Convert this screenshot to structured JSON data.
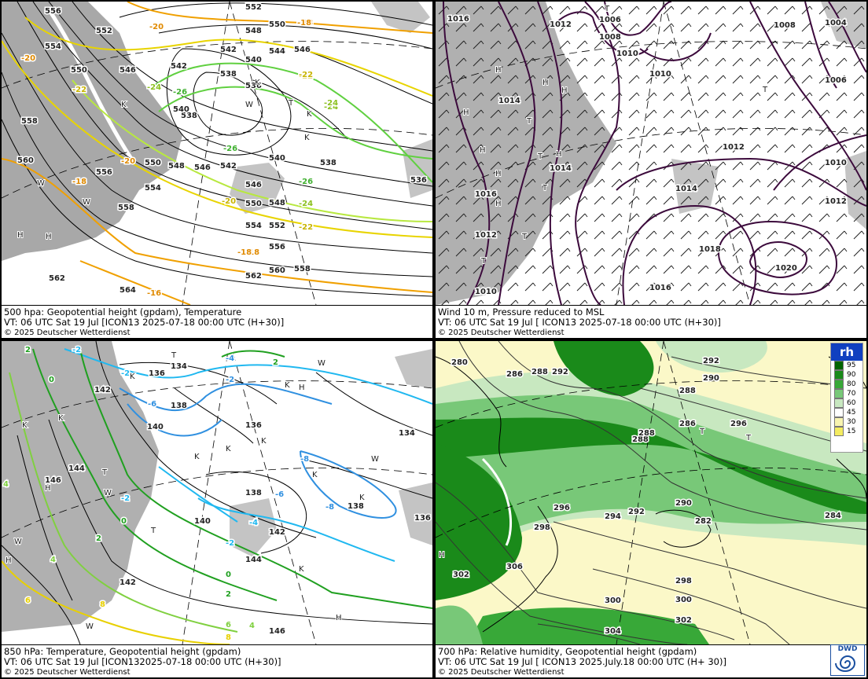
{
  "panels": [
    {
      "caption_line1": "500 hpa: Geopotential height (gpdam), Temperature",
      "caption_line2": "VT: 06 UTC Sat  19 Jul [ICON13 2025-07-18 00:00 UTC  (H+30)]",
      "copyright": "© 2025 Deutscher Wetterdienst",
      "height_labels": [
        "556",
        "552",
        "554",
        "550",
        "546",
        "542",
        "548",
        "552",
        "550",
        "546",
        "540",
        "544",
        "542",
        "538",
        "538",
        "540",
        "536",
        "536",
        "558",
        "560",
        "556",
        "550",
        "554",
        "548",
        "546",
        "542",
        "540",
        "538",
        "546",
        "548",
        "550",
        "552",
        "554",
        "558",
        "556",
        "560",
        "562",
        "564",
        "562",
        "558"
      ],
      "temp_labels": [
        "-20",
        "-18",
        "-20",
        "-22",
        "-24",
        "-26",
        "-24",
        "-22",
        "-18",
        "-26",
        "-24",
        "-26",
        "-20",
        "-18",
        "-20",
        "-22",
        "-18",
        "-16",
        "-24",
        "-22",
        "-18"
      ],
      "pressure_marks": [
        "K",
        "W",
        "T",
        "K",
        "K",
        "H",
        "H",
        "K",
        "W",
        "W"
      ],
      "colors": {
        "height": "#000000",
        "t_orange": "#f0a000",
        "t_yellow": "#e8d400",
        "t_light": "#b8e840",
        "t_green": "#60d040",
        "land": "#a8a8a8"
      }
    },
    {
      "caption_line1": "Wind 10 m, Pressure reduced to MSL",
      "caption_line2": "VT: 06 UTC Sat  19 Jul [ ICON13 2025-07-18 00:00 UTC (H+30)]",
      "copyright": "© 2025 Deutscher Wetterdienst",
      "pressure_labels": [
        "1016",
        "1006",
        "1012",
        "1008",
        "1010",
        "1008",
        "1004",
        "1010",
        "1014",
        "1006",
        "1012",
        "1010",
        "1014",
        "1014",
        "1016",
        "1012",
        "1018",
        "1020",
        "1016",
        "1010",
        "1012"
      ],
      "pressure_marks": [
        "T",
        "H",
        "H",
        "H",
        "H",
        "H",
        "T",
        "T",
        "H",
        "H",
        "T",
        "H",
        "T",
        "T",
        "T"
      ],
      "colors": {
        "isobar": "#3c0a3c",
        "land": "#b0b0b0"
      }
    },
    {
      "caption_line1": "850 hPa:  Temperature, Geopotential height (gpdam)",
      "caption_line2": "VT: 06 UTC Sat  19 Jul [ICON132025-07-18 00:00 UTC (H+30)]",
      "copyright": "© 2025 Deutscher Wetterdienst",
      "height_labels": [
        "134",
        "136",
        "138",
        "140",
        "142",
        "144",
        "146",
        "138",
        "136",
        "134",
        "140",
        "142",
        "144",
        "146",
        "142",
        "136",
        "138"
      ],
      "temp_labels": [
        "2",
        "-2",
        "0",
        "2",
        "-4",
        "-6",
        "-8",
        "-2",
        "0",
        "2",
        "4",
        "6",
        "8",
        "-2",
        "-4",
        "-6",
        "-8",
        "-2",
        "0",
        "2",
        "4",
        "6",
        "8",
        "4",
        "-2",
        "-4"
      ],
      "pressure_marks": [
        "T",
        "K",
        "K",
        "H",
        "K",
        "K",
        "H",
        "K",
        "W",
        "T",
        "W",
        "H",
        "W",
        "K",
        "K",
        "T",
        "K",
        "K",
        "W",
        "K",
        "H",
        "W"
      ],
      "colors": {
        "height": "#000000",
        "t_cyan": "#20b8f0",
        "t_blue": "#3090e0",
        "t_green": "#20a020",
        "t_lgreen": "#80d040",
        "t_yellow": "#e8d000",
        "land": "#b0b0b0"
      }
    },
    {
      "caption_line1": "700 hPa:  Relative humidity, Geopotential height (gpdam)",
      "caption_line2": "VT: 06 UTC Sat  19 Jul [ ICON13  2025.July.18 00:00 UTC (H+ 30)]",
      "copyright": "© 2025 Deutscher Wetterdienst",
      "height_labels": [
        "280",
        "286",
        "288",
        "292",
        "292",
        "290",
        "288",
        "286",
        "288",
        "290",
        "292",
        "294",
        "296",
        "298",
        "300",
        "302",
        "304",
        "302",
        "296",
        "298",
        "300",
        "306",
        "288",
        "284",
        "282"
      ],
      "pressure_marks": [
        "T",
        "T",
        "H"
      ],
      "legend": {
        "title": "rh",
        "entries": [
          {
            "label": "95",
            "color": "#006400"
          },
          {
            "label": "90",
            "color": "#1a8a1a"
          },
          {
            "label": "80",
            "color": "#38a838"
          },
          {
            "label": "70",
            "color": "#78c878"
          },
          {
            "label": "60",
            "color": "#c8e8c0"
          },
          {
            "label": "45",
            "color": "#ffffff"
          },
          {
            "label": "30",
            "color": "#f8f4b0"
          },
          {
            "label": "15",
            "color": "#f4ec60"
          }
        ]
      },
      "logo_text": "DWD"
    }
  ]
}
